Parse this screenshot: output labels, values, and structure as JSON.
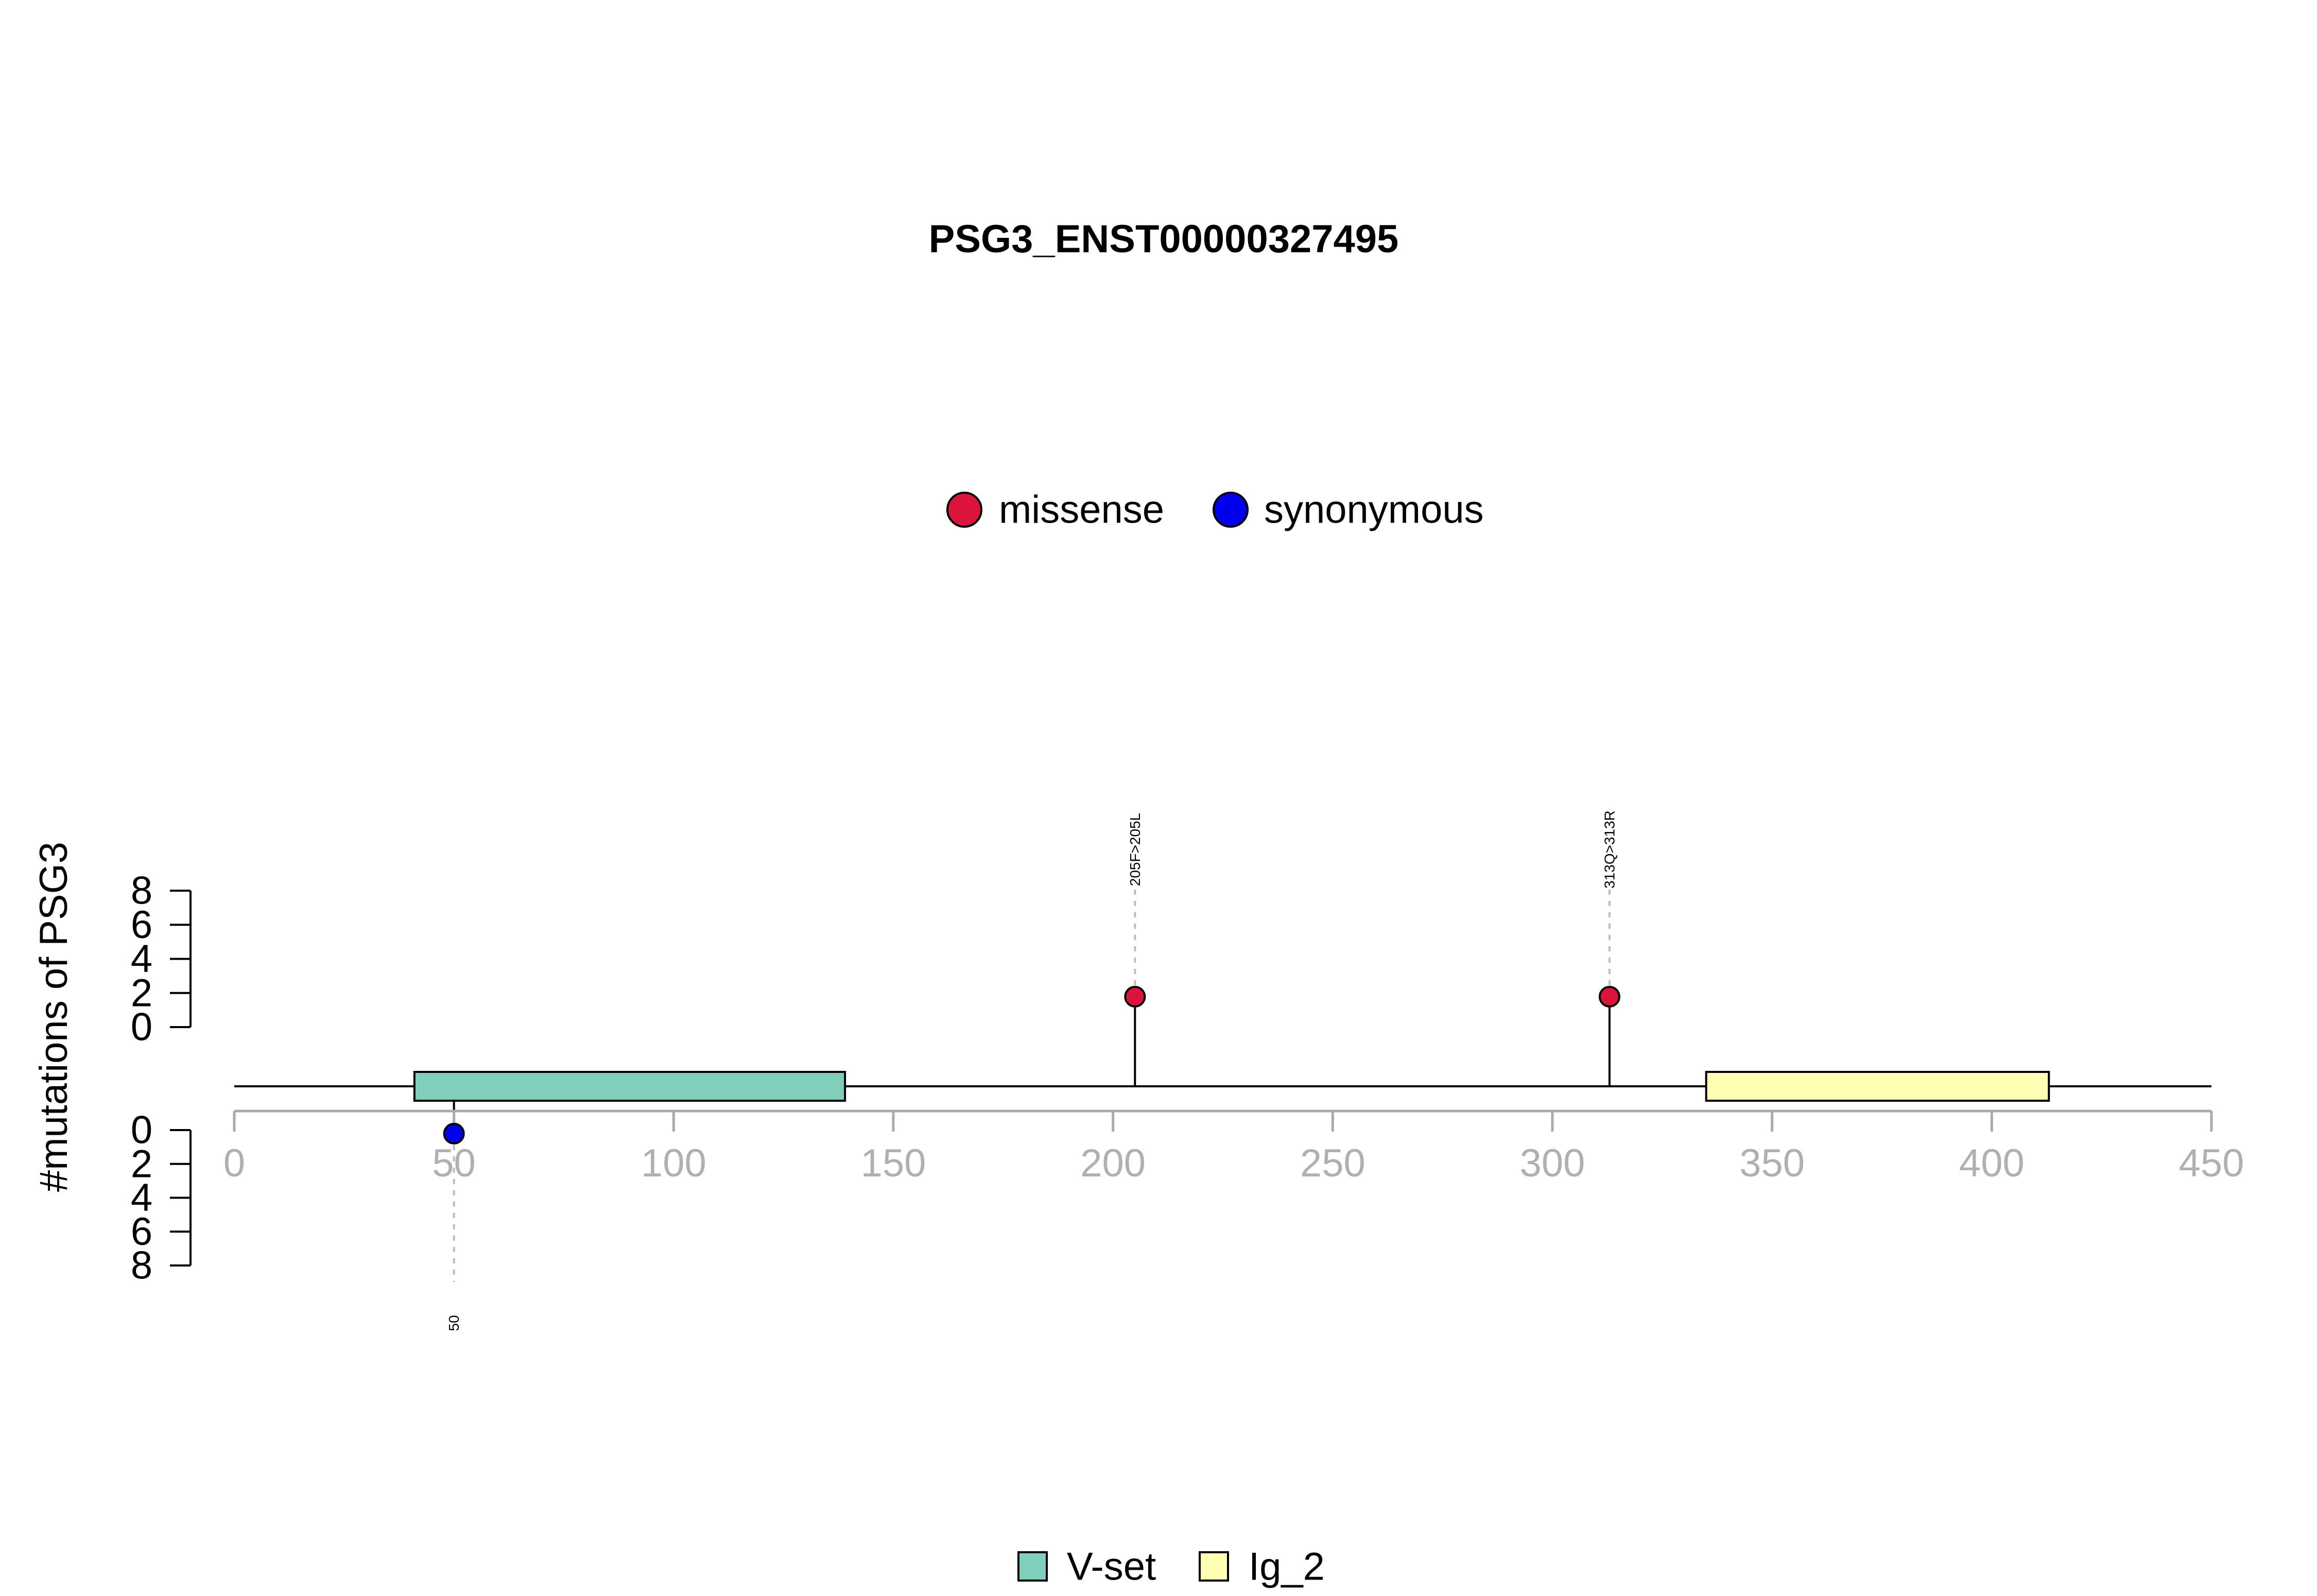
{
  "chart_data": {
    "type": "lollipop",
    "title": "PSG3_ENST00000327495",
    "ylabel": "#mutations of PSG3",
    "xlim": [
      0,
      450
    ],
    "x_ticks": [
      0,
      50,
      100,
      150,
      200,
      250,
      300,
      350,
      400,
      450
    ],
    "y_ticks": [
      0,
      2,
      4,
      6,
      8
    ],
    "ylim": [
      0,
      8
    ],
    "mutation_legend": [
      {
        "label": "missense",
        "color": "#DC143C"
      },
      {
        "label": "synonymous",
        "color": "#0000EE"
      }
    ],
    "mutations": [
      {
        "position": 205,
        "count": 1,
        "type": "missense",
        "label": "205F>205L",
        "side": "top",
        "color": "#DC143C"
      },
      {
        "position": 313,
        "count": 1,
        "type": "missense",
        "label": "313Q>313R",
        "side": "top",
        "color": "#DC143C"
      },
      {
        "position": 50,
        "count": 1,
        "type": "synonymous",
        "label": "50",
        "side": "bottom",
        "color": "#0000EE"
      }
    ],
    "domains": [
      {
        "name": "V-set",
        "start": 41,
        "end": 139,
        "color": "#7FCDBB"
      },
      {
        "name": "Ig_2",
        "start": 335,
        "end": 413,
        "color": "#FFFFB3"
      }
    ],
    "protein_length": 450,
    "colors": {
      "axis_gray": "#AAAAAA",
      "tick_text_gray": "#B0B0B0"
    }
  }
}
